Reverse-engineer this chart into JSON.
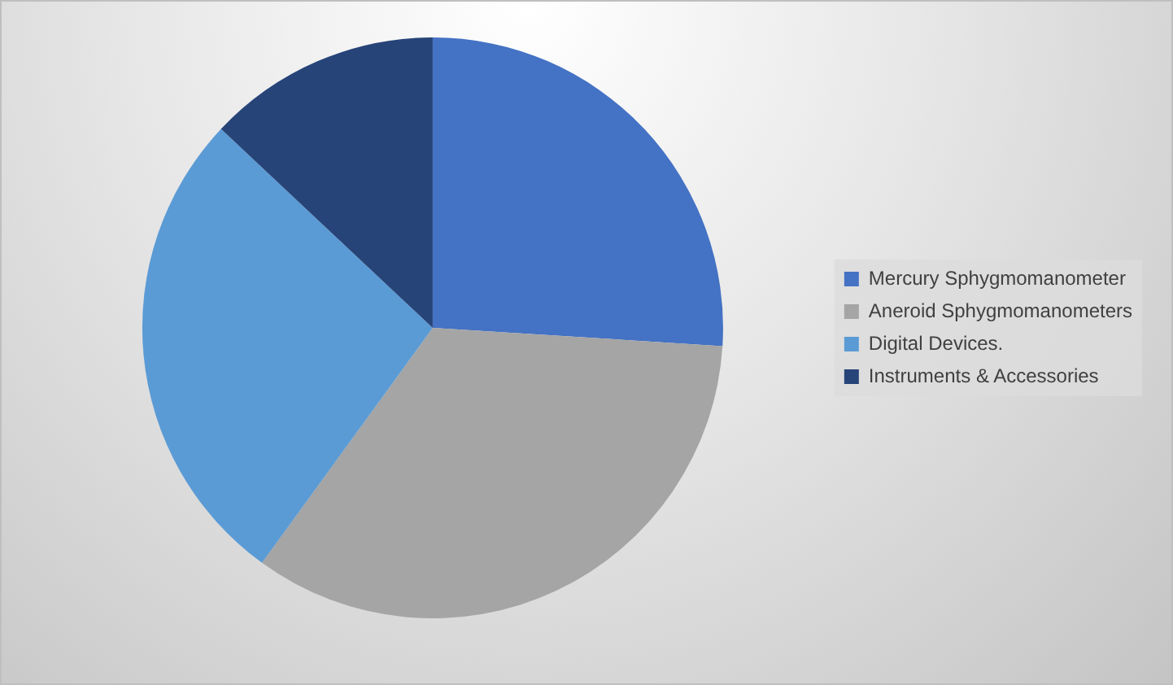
{
  "chart_data": {
    "type": "pie",
    "categories": [
      "Mercury Sphygmomanometer",
      "Aneroid Sphygmomanometers",
      "Digital Devices.",
      "Instruments & Accessories"
    ],
    "values": [
      26,
      34,
      27,
      13
    ],
    "colors": [
      "#4472c4",
      "#a5a5a5",
      "#5b9bd5",
      "#264478"
    ],
    "legend": "right"
  }
}
